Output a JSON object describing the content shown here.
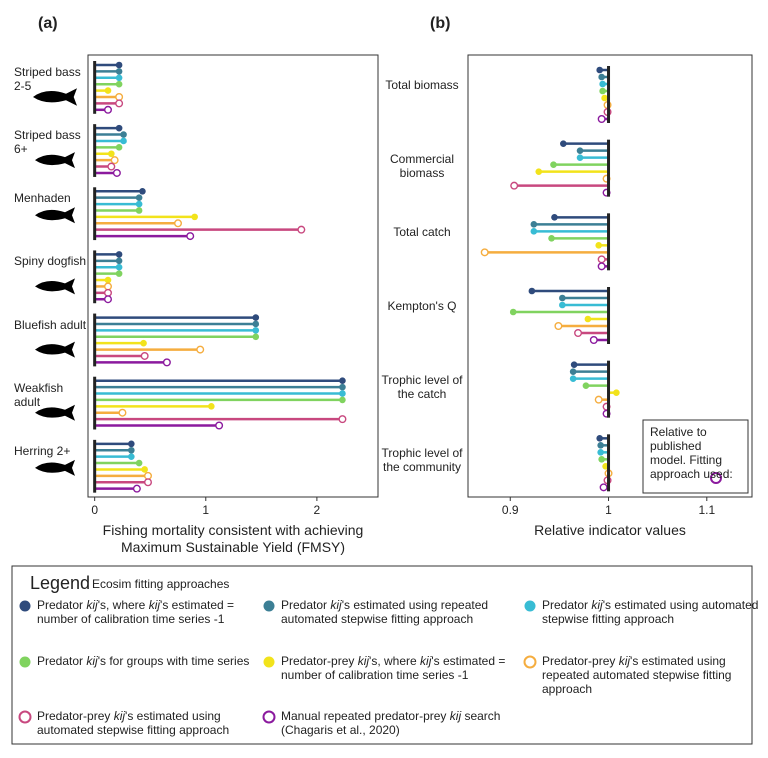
{
  "chart_data": [
    {
      "type": "lollipop",
      "panel_label": "(a)",
      "x_label": "Fishing mortality consistent with achieving Maximum Sustainable Yield (FMSY)",
      "categories": [
        "Striped bass 2-5",
        "Striped bass 6+",
        "Menhaden",
        "Spiny dogfish",
        "Bluefish adult",
        "Weakfish adult",
        "Herring 2+"
      ],
      "baseline": 0,
      "xlim": [
        -0.06,
        2.55
      ],
      "xticks": [
        0,
        1,
        2
      ],
      "series": [
        {
          "name": "Predator kij's, where kij's estimated = number of calibration time series -1",
          "color": "#2f4b7c",
          "marker": "filled",
          "values": [
            0.22,
            0.22,
            0.43,
            0.22,
            1.45,
            2.23,
            0.33
          ]
        },
        {
          "name": "Predator kij's estimated using repeated automated stepwise fitting approach",
          "color": "#3c7f95",
          "marker": "filled",
          "values": [
            0.22,
            0.26,
            0.4,
            0.22,
            1.45,
            2.23,
            0.33
          ]
        },
        {
          "name": "Predator kij's estimated using automated stepwise fitting approach",
          "color": "#38bcd4",
          "marker": "filled",
          "values": [
            0.22,
            0.26,
            0.4,
            0.22,
            1.45,
            2.23,
            0.33
          ]
        },
        {
          "name": "Predator kij's for groups with time series",
          "color": "#80d35f",
          "marker": "filled",
          "values": [
            0.22,
            0.22,
            0.4,
            0.22,
            1.45,
            2.23,
            0.4
          ]
        },
        {
          "name": "Predator-prey kij's, where kij's estimated = number of calibration time series -1",
          "color": "#f2e31b",
          "marker": "filled",
          "values": [
            0.12,
            0.15,
            0.9,
            0.12,
            0.44,
            1.05,
            0.45
          ]
        },
        {
          "name": "Predator-prey kij's estimated using repeated automated stepwise fitting approach",
          "color": "#f5ad3f",
          "marker": "open",
          "values": [
            0.22,
            0.18,
            0.75,
            0.12,
            0.95,
            0.25,
            0.48
          ]
        },
        {
          "name": "Predator-prey kij's estimated using automated stepwise fitting approach",
          "color": "#c8487f",
          "marker": "open",
          "values": [
            0.22,
            0.15,
            1.86,
            0.12,
            0.45,
            2.23,
            0.48
          ]
        },
        {
          "name": "Manual repeated predator-prey kij search (Chagaris et al., 2020)",
          "color": "#8b1a9e",
          "marker": "open",
          "values": [
            0.12,
            0.2,
            0.86,
            0.12,
            0.65,
            1.12,
            0.38
          ]
        }
      ]
    },
    {
      "type": "lollipop",
      "panel_label": "(b)",
      "x_label": "Relative indicator values",
      "annotation": "Relative to published model. Fitting approach used:",
      "categories": [
        "Total biomass",
        "Commercial biomass",
        "Total catch",
        "Kempton's Q",
        "Trophic level of the catch",
        "Trophic level of the community"
      ],
      "baseline": 1,
      "xlim": [
        0.857,
        1.146
      ],
      "xticks": [
        0.9,
        1,
        1.1
      ],
      "series": [
        {
          "color": "#2f4b7c",
          "marker": "filled",
          "values": [
            0.991,
            0.954,
            0.945,
            0.922,
            0.965,
            0.991
          ]
        },
        {
          "color": "#3c7f95",
          "marker": "filled",
          "values": [
            0.993,
            0.971,
            0.924,
            0.953,
            0.964,
            0.992
          ]
        },
        {
          "color": "#38bcd4",
          "marker": "filled",
          "values": [
            0.994,
            0.971,
            0.924,
            0.953,
            0.964,
            0.992
          ]
        },
        {
          "color": "#80d35f",
          "marker": "filled",
          "values": [
            0.994,
            0.944,
            0.942,
            0.903,
            0.977,
            0.993
          ]
        },
        {
          "color": "#f2e31b",
          "marker": "filled",
          "values": [
            0.996,
            0.929,
            0.99,
            0.979,
            1.008,
            0.997
          ]
        },
        {
          "color": "#f5ad3f",
          "marker": "open",
          "values": [
            0.999,
            0.998,
            0.874,
            0.949,
            0.99,
            1.0
          ]
        },
        {
          "color": "#c8487f",
          "marker": "open",
          "values": [
            0.999,
            0.904,
            0.993,
            0.969,
            0.998,
            0.999
          ]
        },
        {
          "color": "#8b1a9e",
          "marker": "open",
          "values": [
            0.993,
            0.998,
            0.993,
            0.985,
            0.998,
            0.995
          ]
        }
      ]
    }
  ],
  "legend": {
    "title": "Legend",
    "subtitle": "Ecosim fitting approaches"
  }
}
